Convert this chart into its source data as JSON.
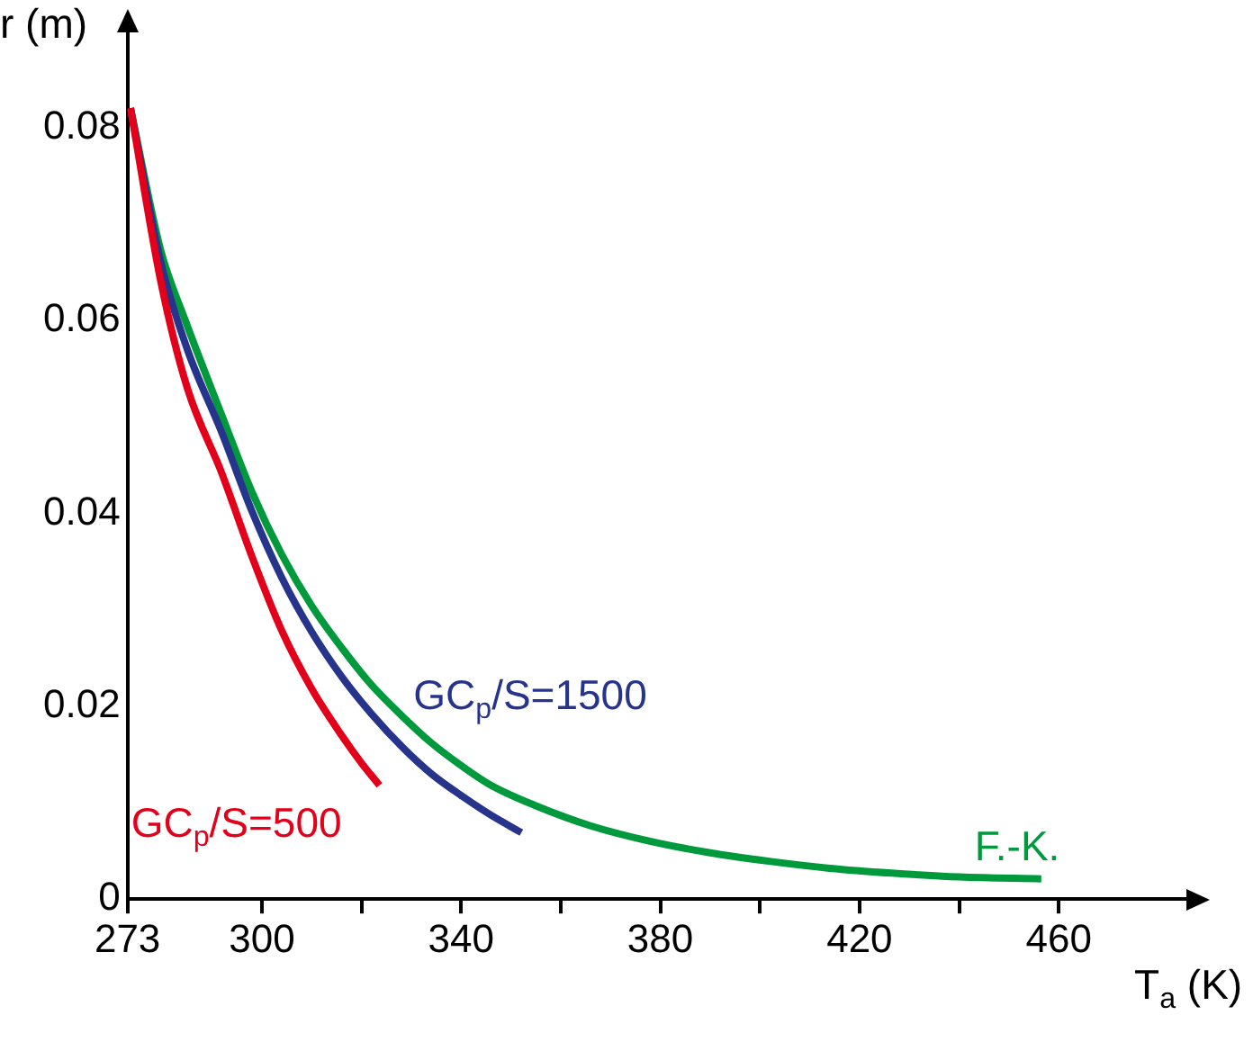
{
  "chart_data": {
    "type": "line",
    "xlabel": "T$_{a}$ (K)",
    "ylabel": "r (m)",
    "xlim": [
      273,
      486
    ],
    "ylim": [
      0,
      0.09
    ],
    "xticks": [
      273,
      300,
      {
        "value": 320,
        "label": null
      },
      340,
      {
        "value": 360,
        "label": null
      },
      380,
      {
        "value": 400,
        "label": null
      },
      420,
      {
        "value": 440,
        "label": null
      },
      460
    ],
    "yticks": [
      0,
      0.02,
      0.04,
      0.06,
      0.08
    ],
    "grid": false,
    "legend": false,
    "marker": "none",
    "line_style": "solid",
    "series": [
      {
        "name": "GC$_{p}$/S=500",
        "color": "#e2001a",
        "x": [
          273.6,
          279.7,
          285,
          291.9,
          298,
          304,
          310,
          316.1,
          320,
          323.6
        ],
        "values": [
          0.082,
          0.064,
          0.053,
          0.0442,
          0.0355,
          0.0278,
          0.0218,
          0.0169,
          0.0141,
          0.0118
        ]
      },
      {
        "name": "GC$_{p}$/S=1500",
        "color": "#27348b",
        "x": [
          273.6,
          279.7,
          285,
          291.9,
          298,
          304,
          310,
          316.1,
          322,
          328.3,
          334,
          340.4,
          346,
          352.1
        ],
        "values": [
          0.082,
          0.066,
          0.057,
          0.0484,
          0.0402,
          0.0333,
          0.0277,
          0.023,
          0.0192,
          0.0157,
          0.013,
          0.0106,
          0.0087,
          0.0069
        ]
      },
      {
        "name": "F.-K.",
        "color": "#009a3d",
        "x": [
          273.6,
          279.7,
          284.6,
          291.9,
          298,
          304,
          310,
          316.1,
          322,
          328.3,
          334,
          340.4,
          346,
          354.9,
          366,
          377.9,
          390,
          402.2,
          414,
          426.4,
          440,
          456.5
        ],
        "values": [
          0.082,
          0.0672,
          0.06,
          0.0502,
          0.0422,
          0.0357,
          0.0304,
          0.026,
          0.0222,
          0.0189,
          0.0162,
          0.0137,
          0.0118,
          0.0097,
          0.0076,
          0.006,
          0.0048,
          0.0039,
          0.0032,
          0.0027,
          0.0023,
          0.0021
        ]
      }
    ]
  }
}
